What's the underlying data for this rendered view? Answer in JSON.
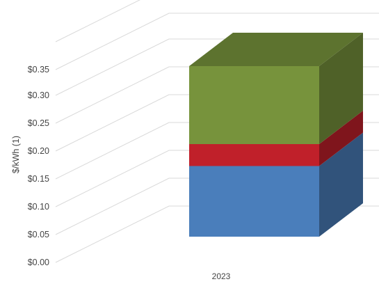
{
  "chart_data": {
    "type": "bar",
    "stacked": true,
    "three_d": true,
    "categories": [
      "2023"
    ],
    "ylabel": "$/kWh (1)",
    "ylim": [
      0,
      0.35
    ],
    "y_ticks": [
      "$0.00",
      "$0.05",
      "$0.10",
      "$0.15",
      "$0.20",
      "$0.25",
      "$0.30",
      "$0.35"
    ],
    "series": [
      {
        "values": [
          0.145
        ],
        "color": "#4a7ebb"
      },
      {
        "values": [
          0.045
        ],
        "color": "#c0202a"
      },
      {
        "values": [
          0.16
        ],
        "color": "#77933c"
      }
    ],
    "grid": true,
    "legend": "none"
  }
}
